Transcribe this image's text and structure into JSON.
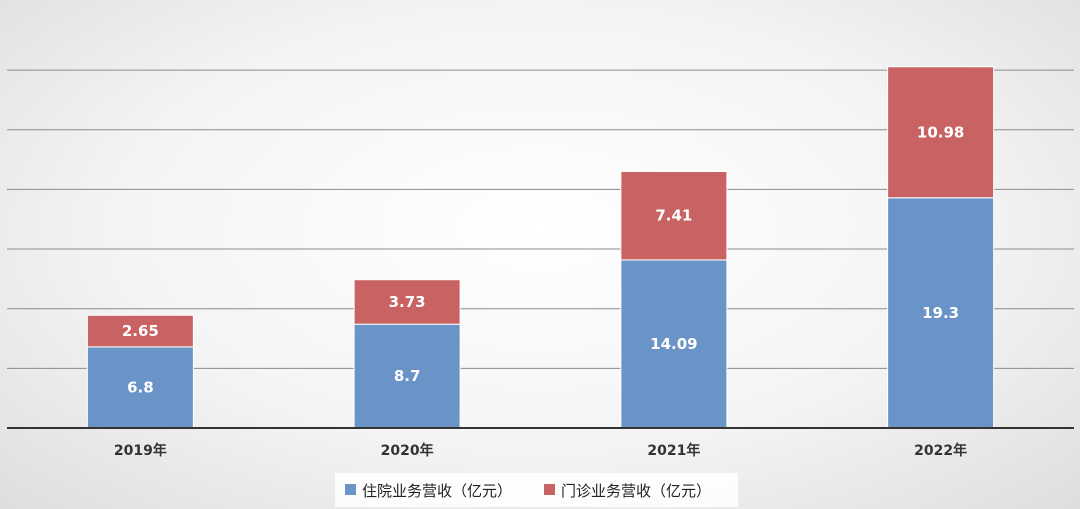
{
  "colors": {
    "inpatient": "#6a93c7",
    "outpatient": "#c96363",
    "grid": "#8c8c8c",
    "axis": "#333333"
  },
  "chart_data": {
    "type": "bar",
    "stacked": true,
    "title": "",
    "xlabel": "",
    "ylabel": "",
    "categories": [
      "2019年",
      "2020年",
      "2021年",
      "2022年"
    ],
    "series": [
      {
        "name": "住院业务营收（亿元）",
        "values": [
          6.8,
          8.7,
          14.09,
          19.3
        ]
      },
      {
        "name": "门诊业务营收（亿元）",
        "values": [
          2.65,
          3.73,
          7.41,
          10.98
        ]
      }
    ],
    "ylim": [
      0,
      30
    ],
    "y_axis_labels_shown": false,
    "grid": true,
    "data_labels": true,
    "legend_position": "bottom"
  }
}
